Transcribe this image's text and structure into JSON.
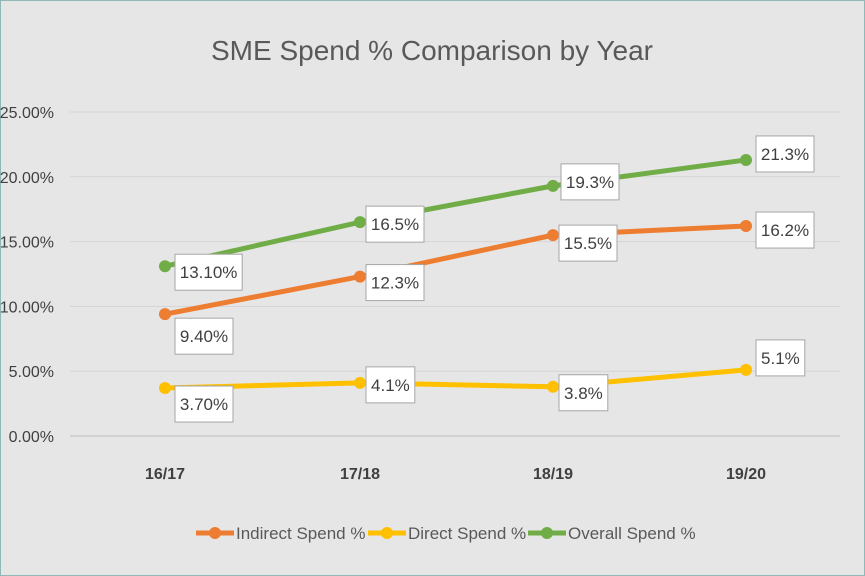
{
  "chart_data": {
    "type": "line",
    "title": "SME Spend % Comparison by Year",
    "xlabel": "",
    "ylabel": "",
    "categories": [
      "16/17",
      "17/18",
      "18/19",
      "19/20"
    ],
    "ylim": [
      0,
      25
    ],
    "yticks": [
      "0.00%",
      "5.00%",
      "10.00%",
      "15.00%",
      "20.00%",
      "25.00%"
    ],
    "grid": true,
    "legend_position": "bottom",
    "series": [
      {
        "name": "Indirect Spend %",
        "color": "#ed7d31",
        "values": [
          9.4,
          12.3,
          15.5,
          16.2
        ],
        "labels": [
          "9.40%",
          "12.3%",
          "15.5%",
          "16.2%"
        ]
      },
      {
        "name": "Direct Spend %",
        "color": "#ffc000",
        "values": [
          3.7,
          4.1,
          3.8,
          5.1
        ],
        "labels": [
          "3.70%",
          "4.1%",
          "3.8%",
          "5.1%"
        ]
      },
      {
        "name": "Overall Spend %",
        "color": "#70ad47",
        "values": [
          13.1,
          16.5,
          19.3,
          21.3
        ],
        "labels": [
          "13.10%",
          "16.5%",
          "19.3%",
          "21.3%"
        ]
      }
    ]
  }
}
